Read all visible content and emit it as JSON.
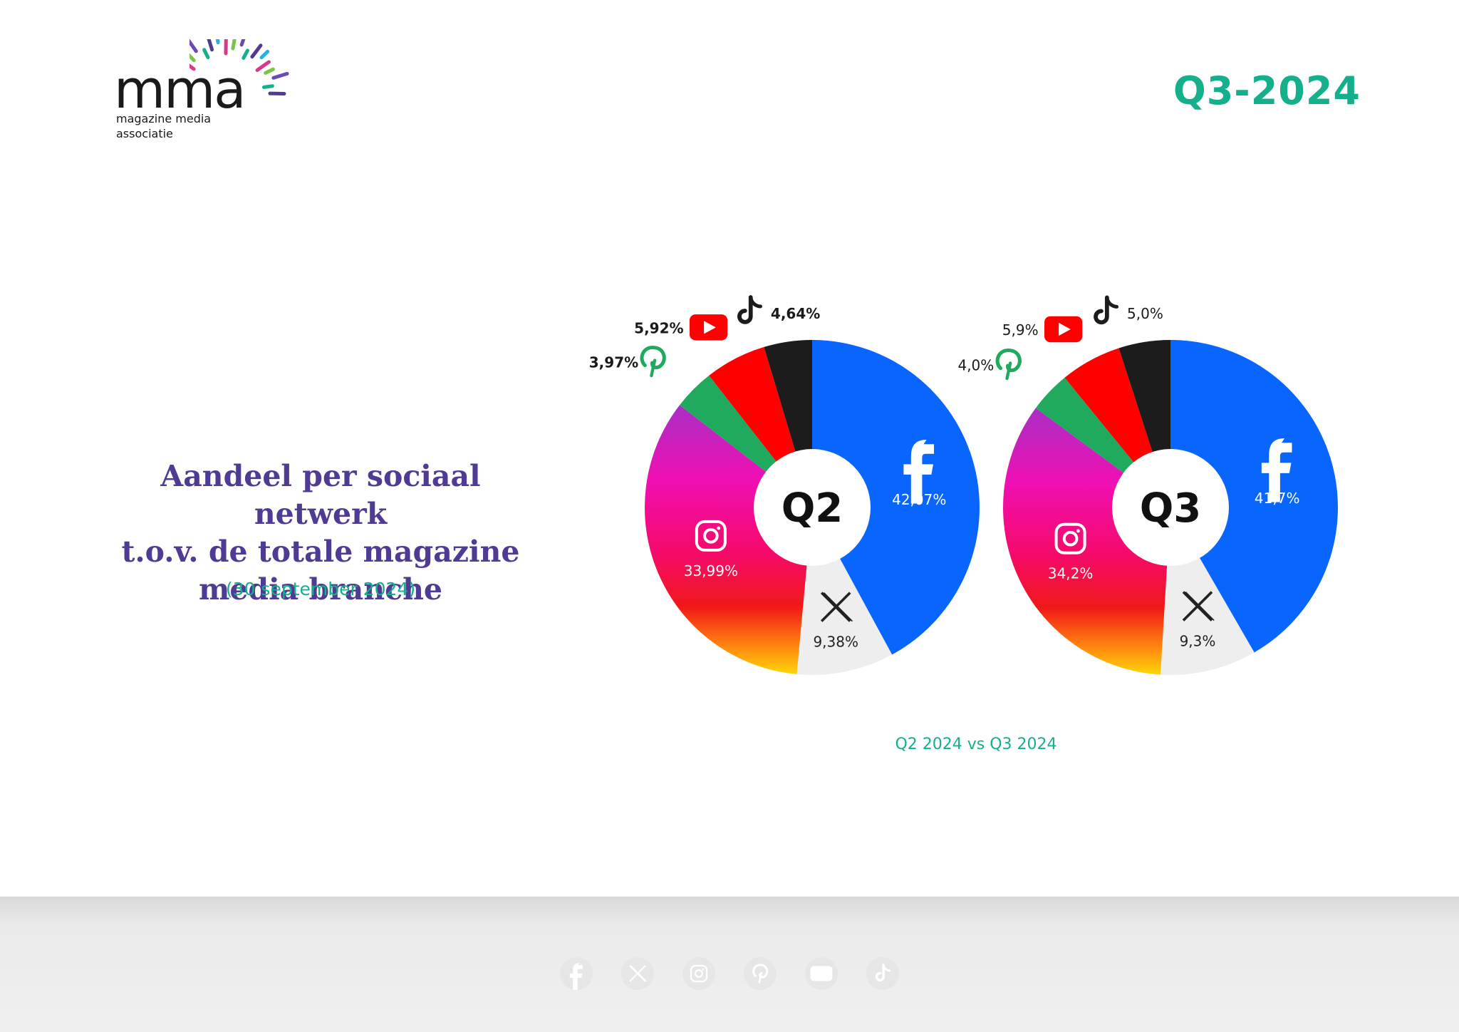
{
  "header": {
    "logo_word": "mma",
    "logo_subtitle": "magazine media associatie",
    "period": "Q3-2024"
  },
  "heading": {
    "title_lines": [
      "Aandeel per sociaal netwerk",
      "t.o.v. de totale magazine",
      "media branche"
    ],
    "date": "(30 september 2024)"
  },
  "caption": "Q2 2024 vs Q3 2024",
  "colors": {
    "accent_green": "#14b08c",
    "heading_purple": "#4f3b93",
    "facebook": "#0866ff",
    "x": "#eeeeee",
    "instagram": "gradient",
    "pinterest": "#1faa5e",
    "youtube": "#ff0000",
    "tiktok": "#1c1c1c"
  },
  "chart_data": [
    {
      "type": "pie",
      "center_label": "Q2",
      "series": [
        {
          "name": "Facebook",
          "icon": "facebook-icon",
          "value": 42.07,
          "label": "42,07%"
        },
        {
          "name": "X",
          "icon": "x-icon",
          "value": 9.38,
          "label": "9,38%"
        },
        {
          "name": "Instagram",
          "icon": "instagram-icon",
          "value": 33.99,
          "label": "33,99%"
        },
        {
          "name": "Pinterest",
          "icon": "pinterest-icon",
          "value": 3.97,
          "label": "3,97%"
        },
        {
          "name": "YouTube",
          "icon": "youtube-icon",
          "value": 5.92,
          "label": "5,92%"
        },
        {
          "name": "TikTok",
          "icon": "tiktok-icon",
          "value": 4.64,
          "label": "4,64%"
        }
      ]
    },
    {
      "type": "pie",
      "center_label": "Q3",
      "series": [
        {
          "name": "Facebook",
          "icon": "facebook-icon",
          "value": 41.7,
          "label": "41,7%"
        },
        {
          "name": "X",
          "icon": "x-icon",
          "value": 9.3,
          "label": "9,3%"
        },
        {
          "name": "Instagram",
          "icon": "instagram-icon",
          "value": 34.2,
          "label": "34,2%"
        },
        {
          "name": "Pinterest",
          "icon": "pinterest-icon",
          "value": 4.0,
          "label": "4,0%"
        },
        {
          "name": "YouTube",
          "icon": "youtube-icon",
          "value": 5.9,
          "label": "5,9%"
        },
        {
          "name": "TikTok",
          "icon": "tiktok-icon",
          "value": 5.0,
          "label": "5,0%"
        }
      ]
    }
  ],
  "footer": {
    "social_links": [
      {
        "icon": "facebook-icon"
      },
      {
        "icon": "x-icon"
      },
      {
        "icon": "instagram-icon"
      },
      {
        "icon": "pinterest-icon"
      },
      {
        "icon": "youtube-icon"
      },
      {
        "icon": "tiktok-icon"
      }
    ]
  }
}
